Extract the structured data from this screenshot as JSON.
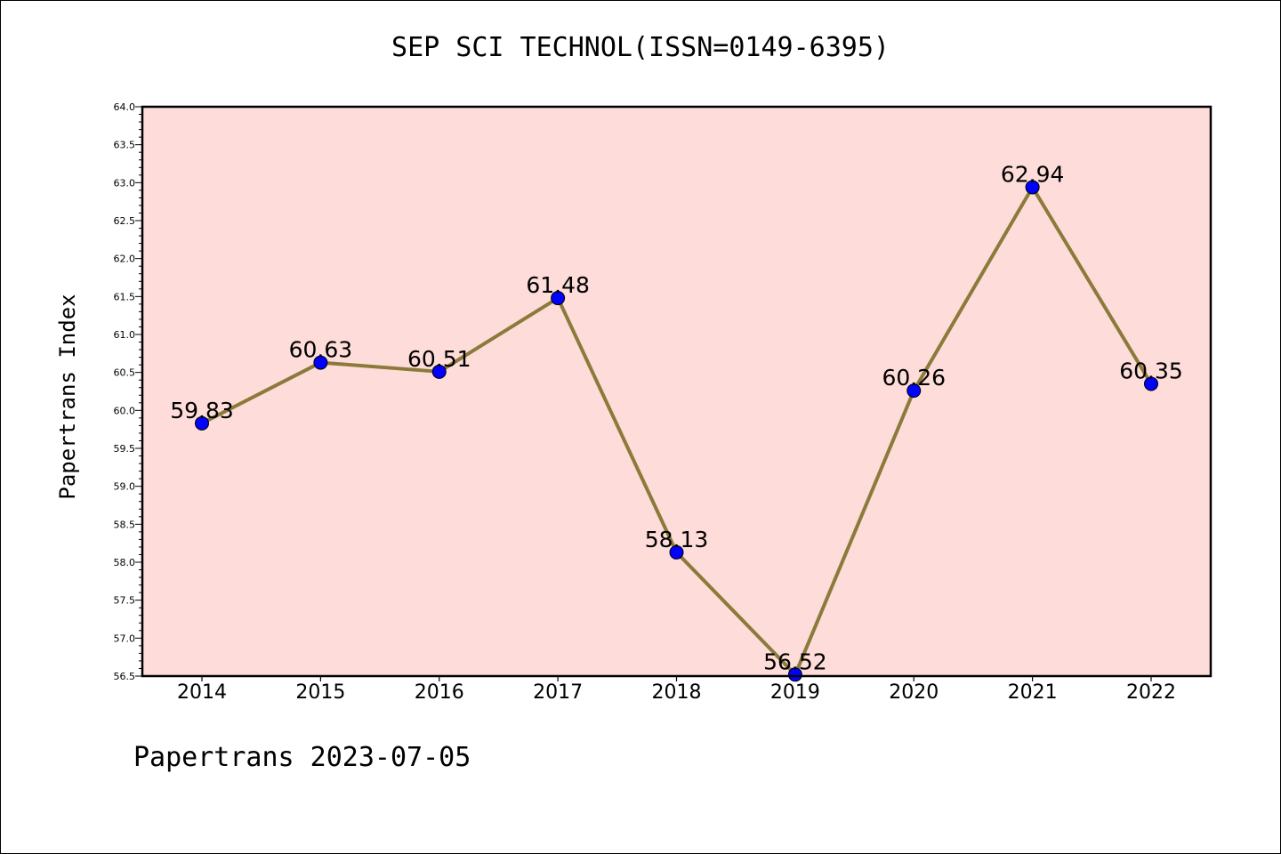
{
  "chart_data": {
    "type": "line",
    "title": "SEP SCI TECHNOL(ISSN=0149-6395)",
    "ylabel": "Papertrans Index",
    "xlabel": "",
    "categories": [
      "2014",
      "2015",
      "2016",
      "2017",
      "2018",
      "2019",
      "2020",
      "2021",
      "2022"
    ],
    "values": [
      59.83,
      60.63,
      60.51,
      61.48,
      58.13,
      56.52,
      60.26,
      62.94,
      60.35
    ],
    "data_labels": [
      "59.83",
      "60.63",
      "60.51",
      "61.48",
      "58.13",
      "56.52",
      "60.26",
      "62.94",
      "60.35"
    ],
    "ylim": [
      56.5,
      64.0
    ],
    "yticks": [
      "56.5",
      "57.0",
      "57.5",
      "58.0",
      "58.5",
      "59.0",
      "59.5",
      "60.0",
      "60.5",
      "61.0",
      "61.5",
      "62.0",
      "62.5",
      "63.0",
      "63.5",
      "64.0"
    ],
    "grid": false,
    "colors": {
      "plot_background": "#fddcd9",
      "line": "#8b7a3a",
      "marker": "#0000ff"
    }
  },
  "footer": "Papertrans 2023-07-05"
}
